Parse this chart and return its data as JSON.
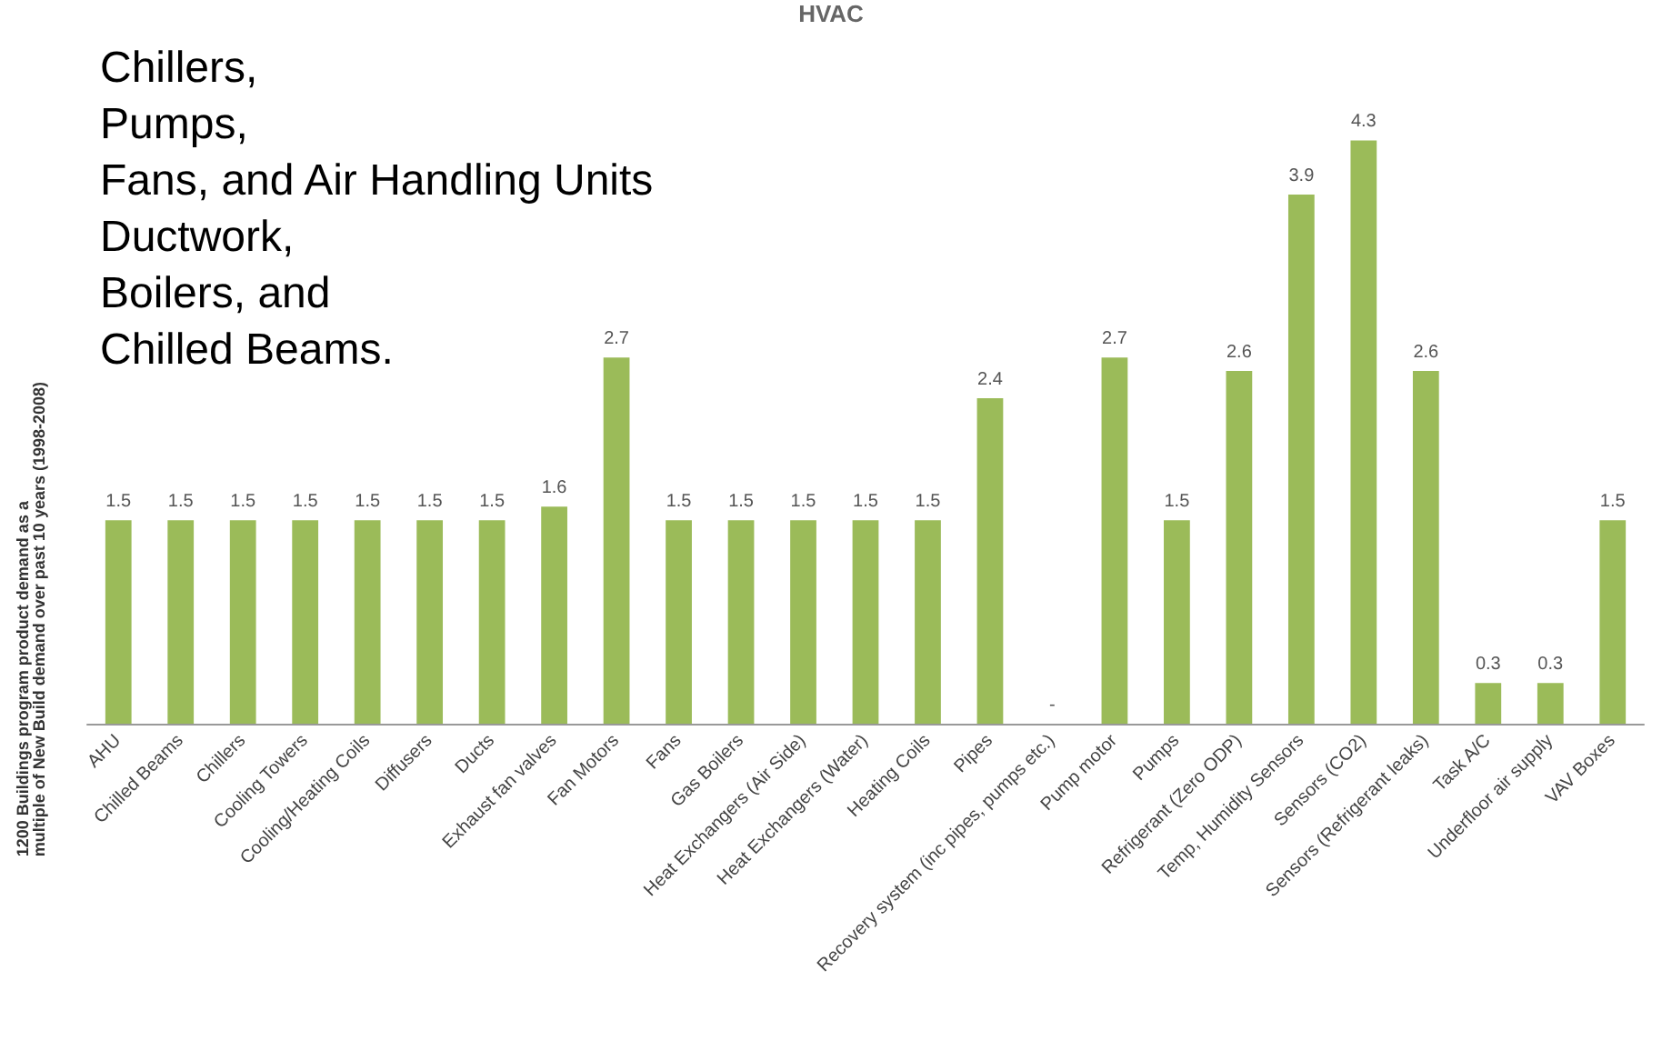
{
  "chart_data": {
    "type": "bar",
    "title": "HVAC",
    "ylabel": "1200 Buildings program product demand as a\nmultiple of New Build demand over past 10 years (1998-2008)",
    "categories": [
      "AHU",
      "Chilled Beams",
      "Chillers",
      "Cooling Towers",
      "Cooling/Heating Coils",
      "Diffusers",
      "Ducts",
      "Exhaust fan valves",
      "Fan Motors",
      "Fans",
      "Gas Boilers",
      "Heat Exchangers (Air Side)",
      "Heat Exchangers (Water)",
      "Heating Coils",
      "Pipes",
      "Recovery system (inc pipes, pumps etc.)",
      "Pump motor",
      "Pumps",
      "Refrigerant (Zero ODP)",
      "Temp, Humidity Sensors",
      "Sensors (CO2)",
      "Sensors (Refrigerant leaks)",
      "Task A/C",
      "Underfloor air supply",
      "VAV Boxes"
    ],
    "values": [
      1.5,
      1.5,
      1.5,
      1.5,
      1.5,
      1.5,
      1.5,
      1.6,
      2.7,
      1.5,
      1.5,
      1.5,
      1.5,
      1.5,
      2.4,
      0,
      2.7,
      1.5,
      2.6,
      3.9,
      4.3,
      2.6,
      0.3,
      0.3,
      1.5
    ],
    "value_labels": [
      "1.5",
      "1.5",
      "1.5",
      "1.5",
      "1.5",
      "1.5",
      "1.5",
      "1.6",
      "2.7",
      "1.5",
      "1.5",
      "1.5",
      "1.5",
      "1.5",
      "2.4",
      "-",
      "2.7",
      "1.5",
      "2.6",
      "3.9",
      "4.3",
      "2.6",
      "0.3",
      "0.3",
      "1.5"
    ],
    "color": "#9bbb59",
    "annotations": [
      "Chillers,\nPumps,\nFans, and Air Handling Units\nDuctwork,\nBoilers, and\nChilled Beams."
    ]
  }
}
